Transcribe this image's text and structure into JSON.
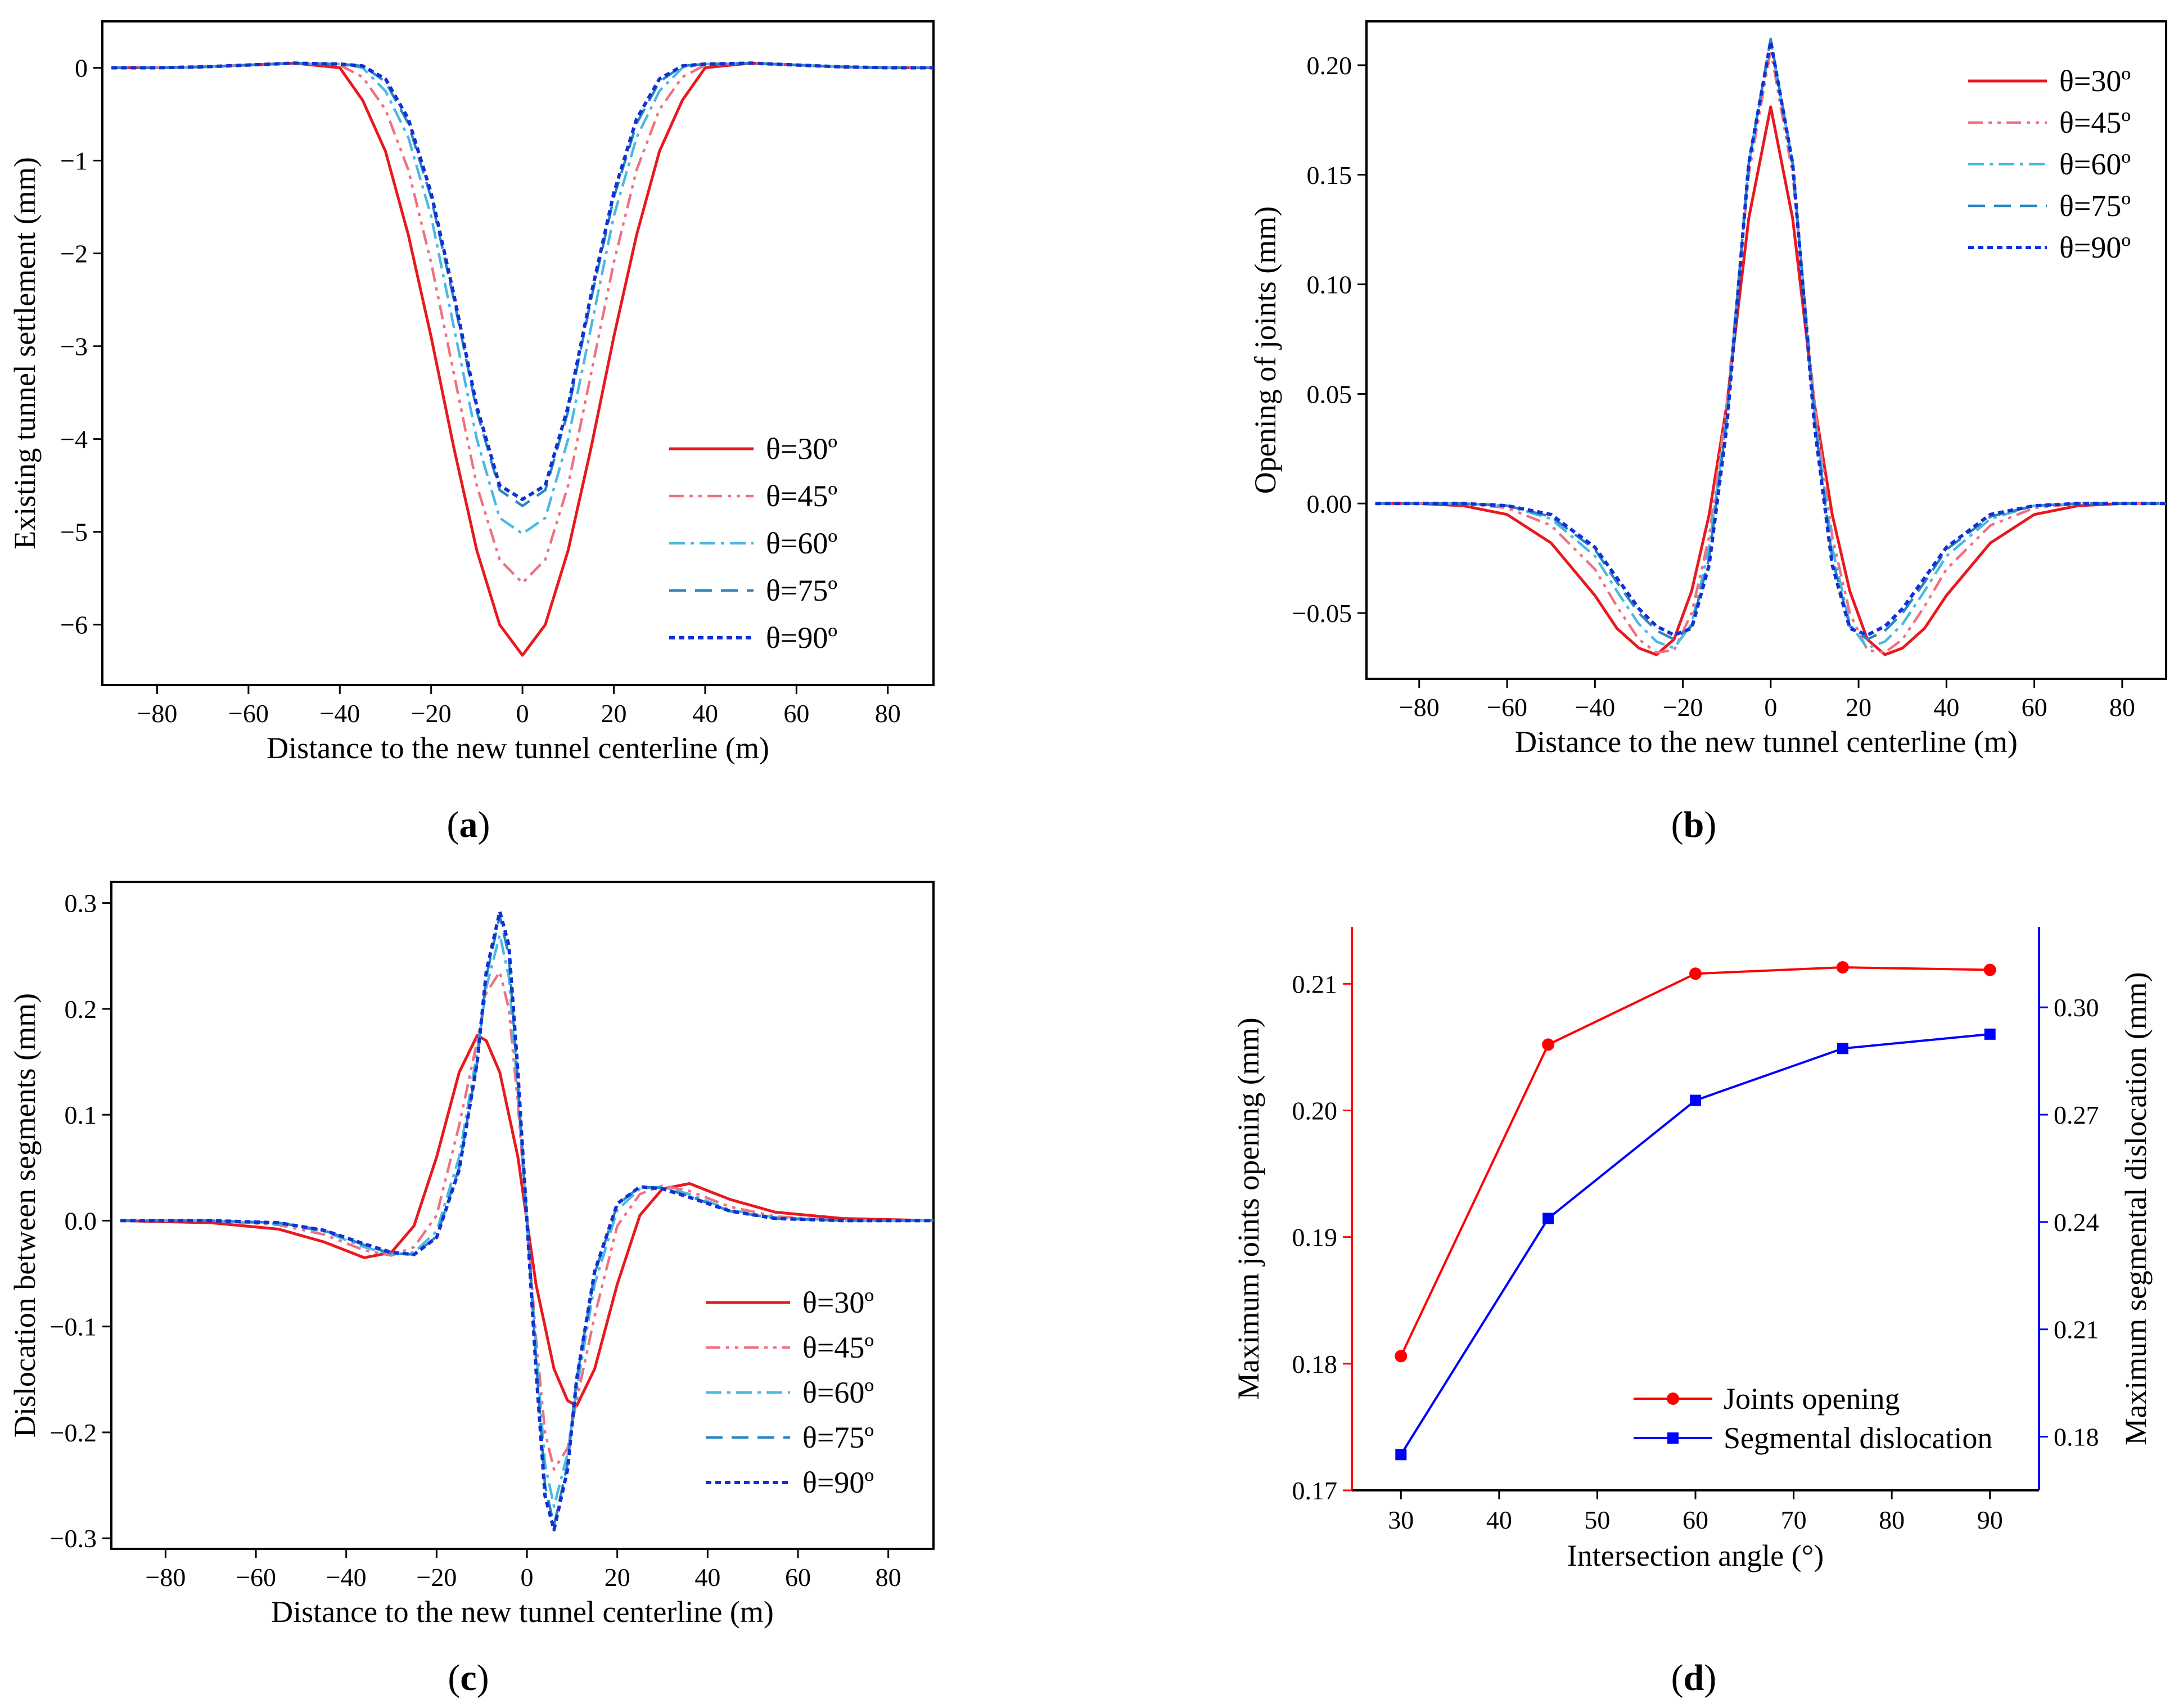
{
  "colors": {
    "theta30": "#e8191f",
    "theta45": "#f07080",
    "theta60": "#4ab8e2",
    "theta75": "#2a86c0",
    "theta90": "#1030d8",
    "joints": "#ff0000",
    "dislocation": "#0000ff"
  },
  "chart_data": [
    {
      "type": "line",
      "panel": "(a)",
      "panel_open": "(",
      "panel_letter": "a",
      "panel_close": ")",
      "xlabel": "Distance to the new tunnel centerline (m)",
      "ylabel": "Existing tunnel settlement (mm)",
      "xlim": [
        -92,
        90
      ],
      "ylim": [
        -6.65,
        0.5
      ],
      "xticks": [
        -80,
        -60,
        -40,
        -20,
        0,
        20,
        40,
        60,
        80
      ],
      "yticks": [
        0,
        -1,
        -2,
        -3,
        -4,
        -5,
        -6
      ],
      "xtick_labels": [
        "−80",
        "−60",
        "−40",
        "−20",
        "0",
        "20",
        "40",
        "60",
        "80"
      ],
      "ytick_labels": [
        "0",
        "−1",
        "−2",
        "−3",
        "−4",
        "−5",
        "−6"
      ],
      "x": [
        -90,
        -80,
        -70,
        -60,
        -50,
        -40,
        -35,
        -30,
        -25,
        -20,
        -15,
        -10,
        -5,
        0,
        5,
        10,
        15,
        20,
        25,
        30,
        35,
        40,
        50,
        60,
        70,
        80,
        90
      ],
      "series": [
        {
          "name": "θ=30º",
          "y": [
            0,
            0,
            0.01,
            0.03,
            0.05,
            0,
            -0.35,
            -0.9,
            -1.8,
            -2.9,
            -4.1,
            -5.2,
            -6.0,
            -6.33,
            -6.0,
            -5.2,
            -4.1,
            -2.9,
            -1.8,
            -0.9,
            -0.35,
            0,
            0.05,
            0.03,
            0.01,
            0,
            0
          ]
        },
        {
          "name": "θ=45º",
          "y": [
            0,
            0,
            0.01,
            0.03,
            0.05,
            0.03,
            -0.1,
            -0.45,
            -1.1,
            -2.1,
            -3.3,
            -4.5,
            -5.3,
            -5.55,
            -5.3,
            -4.5,
            -3.3,
            -2.1,
            -1.1,
            -0.45,
            -0.1,
            0.03,
            0.05,
            0.03,
            0.01,
            0,
            0
          ]
        },
        {
          "name": "θ=60º",
          "y": [
            0,
            0,
            0.01,
            0.03,
            0.05,
            0.04,
            0,
            -0.25,
            -0.75,
            -1.6,
            -2.8,
            -4.0,
            -4.85,
            -5.02,
            -4.85,
            -4.0,
            -2.8,
            -1.6,
            -0.75,
            -0.25,
            0,
            0.04,
            0.05,
            0.03,
            0.01,
            0,
            0
          ]
        },
        {
          "name": "θ=75º",
          "y": [
            0,
            0,
            0.01,
            0.03,
            0.05,
            0.04,
            0.02,
            -0.15,
            -0.6,
            -1.4,
            -2.5,
            -3.7,
            -4.55,
            -4.72,
            -4.55,
            -3.7,
            -2.5,
            -1.4,
            -0.6,
            -0.15,
            0.02,
            0.04,
            0.05,
            0.03,
            0.01,
            0,
            0
          ]
        },
        {
          "name": "θ=90º",
          "y": [
            0,
            0,
            0.01,
            0.03,
            0.05,
            0.04,
            0.02,
            -0.12,
            -0.55,
            -1.35,
            -2.45,
            -3.65,
            -4.5,
            -4.65,
            -4.5,
            -3.65,
            -2.45,
            -1.35,
            -0.55,
            -0.12,
            0.02,
            0.04,
            0.05,
            0.03,
            0.01,
            0,
            0
          ]
        }
      ],
      "legend": "lower-right"
    },
    {
      "type": "line",
      "panel": "(b)",
      "panel_open": "(",
      "panel_letter": "b",
      "panel_close": ")",
      "xlabel": "Distance to the new tunnel centerline (m)",
      "ylabel": "Opening of joints (mm)",
      "xlim": [
        -92,
        90
      ],
      "ylim": [
        -0.08,
        0.22
      ],
      "xticks": [
        -80,
        -60,
        -40,
        -20,
        0,
        20,
        40,
        60,
        80
      ],
      "yticks": [
        -0.05,
        0.0,
        0.05,
        0.1,
        0.15,
        0.2
      ],
      "xtick_labels": [
        "−80",
        "−60",
        "−40",
        "−20",
        "0",
        "20",
        "40",
        "60",
        "80"
      ],
      "ytick_labels": [
        "−0.05",
        "0.00",
        "0.05",
        "0.10",
        "0.15",
        "0.20"
      ],
      "x": [
        -90,
        -80,
        -70,
        -60,
        -50,
        -40,
        -35,
        -30,
        -26,
        -22,
        -18,
        -14,
        -10,
        -5,
        0,
        5,
        10,
        14,
        18,
        22,
        26,
        30,
        35,
        40,
        50,
        60,
        70,
        80,
        90
      ],
      "series": [
        {
          "name": "θ=30º",
          "y": [
            0,
            0,
            -0.001,
            -0.005,
            -0.018,
            -0.042,
            -0.057,
            -0.066,
            -0.069,
            -0.062,
            -0.04,
            -0.005,
            0.045,
            0.13,
            0.181,
            0.13,
            0.045,
            -0.005,
            -0.04,
            -0.062,
            -0.069,
            -0.066,
            -0.057,
            -0.042,
            -0.018,
            -0.005,
            -0.001,
            0,
            0
          ]
        },
        {
          "name": "θ=45º",
          "y": [
            0,
            0,
            0,
            -0.002,
            -0.01,
            -0.03,
            -0.047,
            -0.062,
            -0.068,
            -0.067,
            -0.05,
            -0.015,
            0.045,
            0.15,
            0.207,
            0.15,
            0.045,
            -0.015,
            -0.05,
            -0.067,
            -0.068,
            -0.062,
            -0.047,
            -0.03,
            -0.01,
            -0.002,
            0,
            0,
            0
          ]
        },
        {
          "name": "θ=60º",
          "y": [
            0,
            0,
            0,
            -0.001,
            -0.007,
            -0.024,
            -0.04,
            -0.055,
            -0.063,
            -0.066,
            -0.055,
            -0.02,
            0.04,
            0.155,
            0.211,
            0.155,
            0.04,
            -0.02,
            -0.055,
            -0.066,
            -0.063,
            -0.055,
            -0.04,
            -0.024,
            -0.007,
            -0.001,
            0,
            0,
            0
          ]
        },
        {
          "name": "θ=75º",
          "y": [
            0,
            0,
            0,
            -0.001,
            -0.006,
            -0.021,
            -0.036,
            -0.05,
            -0.058,
            -0.062,
            -0.056,
            -0.025,
            0.038,
            0.155,
            0.212,
            0.155,
            0.038,
            -0.025,
            -0.056,
            -0.062,
            -0.058,
            -0.05,
            -0.036,
            -0.021,
            -0.006,
            -0.001,
            0,
            0,
            0
          ]
        },
        {
          "name": "θ=90º",
          "y": [
            0,
            0,
            0,
            -0.001,
            -0.005,
            -0.02,
            -0.034,
            -0.048,
            -0.056,
            -0.06,
            -0.057,
            -0.028,
            0.035,
            0.155,
            0.211,
            0.155,
            0.035,
            -0.028,
            -0.057,
            -0.06,
            -0.056,
            -0.048,
            -0.034,
            -0.02,
            -0.005,
            -0.001,
            0,
            0,
            0
          ]
        }
      ],
      "legend": "top-right"
    },
    {
      "type": "line",
      "panel": "(c)",
      "panel_open": "(",
      "panel_letter": "c",
      "panel_close": ")",
      "xlabel": "Distance to the new tunnel centerline (m)",
      "ylabel": "Dislocation between segments (mm)",
      "xlim": [
        -92,
        90
      ],
      "ylim": [
        -0.31,
        0.32
      ],
      "xticks": [
        -80,
        -60,
        -40,
        -20,
        0,
        20,
        40,
        60,
        80
      ],
      "yticks": [
        -0.3,
        -0.2,
        -0.1,
        0.0,
        0.1,
        0.2,
        0.3
      ],
      "xtick_labels": [
        "−80",
        "−60",
        "−40",
        "−20",
        "0",
        "20",
        "40",
        "60",
        "80"
      ],
      "ytick_labels": [
        "−0.3",
        "−0.2",
        "−0.1",
        "0.0",
        "0.1",
        "0.2",
        "0.3"
      ],
      "x": [
        -90,
        -70,
        -55,
        -45,
        -36,
        -30,
        -25,
        -20,
        -15,
        -11,
        -9,
        -6,
        -4,
        -2,
        0,
        2,
        4,
        6,
        9,
        11,
        15,
        20,
        25,
        30,
        36,
        45,
        55,
        70,
        90
      ],
      "series": [
        {
          "name": "θ=30º",
          "y": [
            0,
            -0.002,
            -0.008,
            -0.02,
            -0.035,
            -0.03,
            -0.005,
            0.06,
            0.14,
            0.175,
            0.17,
            0.14,
            0.1,
            0.06,
            0.0,
            -0.06,
            -0.1,
            -0.14,
            -0.17,
            -0.175,
            -0.14,
            -0.06,
            0.005,
            0.03,
            0.035,
            0.02,
            0.008,
            0.002,
            0
          ]
        },
        {
          "name": "θ=45º",
          "y": [
            0,
            0,
            -0.004,
            -0.013,
            -0.028,
            -0.033,
            -0.025,
            0.005,
            0.09,
            0.17,
            0.215,
            0.235,
            0.2,
            0.11,
            0.0,
            -0.11,
            -0.2,
            -0.235,
            -0.215,
            -0.17,
            -0.09,
            -0.005,
            0.025,
            0.033,
            0.028,
            0.013,
            0.004,
            0,
            0
          ]
        },
        {
          "name": "θ=60º",
          "y": [
            0,
            0,
            -0.003,
            -0.01,
            -0.025,
            -0.032,
            -0.03,
            -0.01,
            0.06,
            0.16,
            0.22,
            0.27,
            0.23,
            0.12,
            0.0,
            -0.12,
            -0.23,
            -0.27,
            -0.22,
            -0.16,
            -0.06,
            0.01,
            0.03,
            0.032,
            0.025,
            0.01,
            0.003,
            0,
            0
          ]
        },
        {
          "name": "θ=75º",
          "y": [
            0,
            0,
            -0.002,
            -0.009,
            -0.023,
            -0.031,
            -0.032,
            -0.015,
            0.05,
            0.15,
            0.23,
            0.288,
            0.25,
            0.13,
            0.0,
            -0.13,
            -0.25,
            -0.288,
            -0.23,
            -0.15,
            -0.05,
            0.015,
            0.032,
            0.031,
            0.023,
            0.009,
            0.002,
            0,
            0
          ]
        },
        {
          "name": "θ=90º",
          "y": [
            0,
            0,
            -0.002,
            -0.009,
            -0.022,
            -0.03,
            -0.032,
            -0.016,
            0.048,
            0.15,
            0.235,
            0.292,
            0.26,
            0.14,
            0.0,
            -0.14,
            -0.26,
            -0.292,
            -0.235,
            -0.15,
            -0.048,
            0.016,
            0.032,
            0.03,
            0.022,
            0.009,
            0.002,
            0,
            0
          ]
        }
      ],
      "legend": "lower-right"
    },
    {
      "type": "line",
      "panel": "(d)",
      "panel_open": "(",
      "panel_letter": "d",
      "panel_close": ")",
      "xlabel": "Intersection angle (°)",
      "ylabel_left": "Maximum joints  opening (mm)",
      "ylabel_right": "Maximum segmental dislocation (mm)",
      "xlim": [
        25,
        95
      ],
      "ylim_left": [
        0.17,
        0.2145
      ],
      "ylim_right": [
        0.165,
        0.3225
      ],
      "xticks": [
        30,
        40,
        50,
        60,
        70,
        80,
        90
      ],
      "yticks_left": [
        0.17,
        0.18,
        0.19,
        0.2,
        0.21
      ],
      "yticks_right": [
        0.18,
        0.21,
        0.24,
        0.27,
        0.3
      ],
      "xtick_labels": [
        "30",
        "40",
        "50",
        "60",
        "70",
        "80",
        "90"
      ],
      "ytick_labels_left": [
        "0.17",
        "0.18",
        "0.19",
        "0.20",
        "0.21"
      ],
      "ytick_labels_right": [
        "0.18",
        "0.21",
        "0.24",
        "0.27",
        "0.30"
      ],
      "x": [
        30,
        45,
        60,
        75,
        90
      ],
      "series": [
        {
          "name": "Joints opening",
          "axis": "left",
          "marker": "circle",
          "values": [
            0.1806,
            0.2052,
            0.2108,
            0.2113,
            0.2111
          ]
        },
        {
          "name": "Segmental dislocation",
          "axis": "right",
          "marker": "square",
          "values": [
            0.175,
            0.241,
            0.274,
            0.2885,
            0.2925
          ]
        }
      ],
      "legend": "lower-right"
    }
  ]
}
